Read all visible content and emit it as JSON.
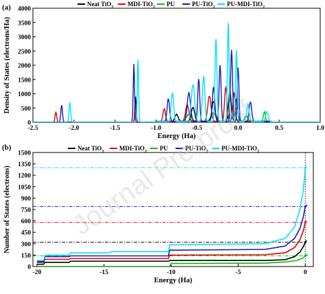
{
  "watermark": "Journal Pre-proof",
  "chart_data": [
    {
      "type": "line",
      "panel_tag": "(a)",
      "xlabel": "Energy (Ha)",
      "ylabel": "Density of States (electrons/Ha)",
      "xlim": [
        -2.5,
        1.0
      ],
      "ylim": [
        0,
        4000
      ],
      "xticks": [
        -2.5,
        -2.0,
        -1.5,
        -1.0,
        -0.5,
        0.0,
        0.5,
        1.0
      ],
      "xtick_labels": [
        "-2.5",
        "-2.0",
        "-1.5",
        "-1.0",
        "-0.5",
        "0.0",
        "0.5",
        "1.0"
      ],
      "yticks": [
        0,
        500,
        1000,
        1500,
        2000,
        2500,
        3000,
        3500,
        4000
      ],
      "ytick_labels": [
        "0",
        "500",
        "1000",
        "1500",
        "2000",
        "2500",
        "3000",
        "3500",
        "4000"
      ],
      "legend_position": "top-right",
      "series": [
        {
          "name": "Neat TiO2",
          "name_main": "Neat TiO",
          "name_sub": "2",
          "color": "#000000",
          "peaks": [
            [
              -1.25,
              900,
              0.008
            ],
            [
              -0.75,
              250,
              0.02
            ],
            [
              -0.55,
              500,
              0.02
            ],
            [
              -0.3,
              700,
              0.02
            ],
            [
              -0.1,
              1100,
              0.015
            ],
            [
              -0.02,
              800,
              0.015
            ]
          ]
        },
        {
          "name": "MDI-TiO2",
          "name_main": "MDI-TiO",
          "name_sub": "2",
          "color": "#e00000",
          "peaks": [
            [
              -2.22,
              350,
              0.01
            ],
            [
              -1.25,
              650,
              0.008
            ],
            [
              -0.9,
              450,
              0.015
            ],
            [
              -0.62,
              600,
              0.02
            ],
            [
              -0.35,
              900,
              0.02
            ],
            [
              -0.15,
              1200,
              0.015
            ],
            [
              -0.05,
              1000,
              0.015
            ]
          ]
        },
        {
          "name": "PU",
          "name_main": "PU",
          "name_sub": "",
          "color": "#00c000",
          "peaks": [
            [
              -0.6,
              250,
              0.03
            ],
            [
              -0.3,
              300,
              0.03
            ],
            [
              -0.05,
              350,
              0.02
            ],
            [
              0.1,
              200,
              0.02
            ],
            [
              0.32,
              350,
              0.012
            ]
          ]
        },
        {
          "name": "PU-TiO2",
          "name_main": "PU-TiO",
          "name_sub": "2",
          "color": "#1a1ab8",
          "peaks": [
            [
              -2.15,
              600,
              0.01
            ],
            [
              -1.27,
              2050,
              0.008
            ],
            [
              -0.85,
              800,
              0.015
            ],
            [
              -0.6,
              1000,
              0.02
            ],
            [
              -0.48,
              1500,
              0.012
            ],
            [
              -0.3,
              1200,
              0.015
            ],
            [
              -0.22,
              2000,
              0.012
            ],
            [
              -0.08,
              2500,
              0.012
            ],
            [
              0.0,
              1900,
              0.01
            ],
            [
              0.15,
              700,
              0.015
            ]
          ]
        },
        {
          "name": "PU-MDI-TiO2",
          "name_main": "PU-MDI-TiO",
          "name_sub": "2",
          "color": "#00e0ff",
          "peaks": [
            [
              -2.05,
              700,
              0.01
            ],
            [
              -1.22,
              2200,
              0.008
            ],
            [
              -0.8,
              1000,
              0.015
            ],
            [
              -0.55,
              1300,
              0.02
            ],
            [
              -0.42,
              1600,
              0.015
            ],
            [
              -0.27,
              2900,
              0.012
            ],
            [
              -0.12,
              3450,
              0.01
            ],
            [
              -0.02,
              2500,
              0.01
            ],
            [
              0.12,
              600,
              0.015
            ],
            [
              0.35,
              350,
              0.015
            ]
          ]
        }
      ]
    },
    {
      "type": "line",
      "panel_tag": "(b)",
      "xlabel": "Energy (Ha)",
      "ylabel": "Number of States (electrons)",
      "xlim": [
        -20.3,
        0.6
      ],
      "ylim": [
        0,
        1500
      ],
      "xticks": [
        -20,
        -15,
        -10,
        -5,
        0
      ],
      "xtick_labels": [
        "-20",
        "-15",
        "-10",
        "-5",
        "0"
      ],
      "yticks": [
        0,
        150,
        300,
        450,
        600,
        750,
        900,
        1050,
        1200,
        1350,
        1500
      ],
      "ytick_labels": [
        "0",
        "150",
        "300",
        "450",
        "600",
        "750",
        "900",
        "1050",
        "1200",
        "1350",
        "1500"
      ],
      "legend_position": "top",
      "fermi_level": 0,
      "series": [
        {
          "name": "Neat TiO2",
          "name_main": "Neat TiO",
          "name_sub": "2",
          "color": "#000000",
          "total": 320,
          "points": [
            [
              -20,
              30
            ],
            [
              -19.5,
              30
            ],
            [
              -19.4,
              55
            ],
            [
              -17.6,
              55
            ],
            [
              -17.5,
              70
            ],
            [
              -10.2,
              70
            ],
            [
              -10.1,
              80
            ],
            [
              -3,
              80
            ],
            [
              -1.5,
              90
            ],
            [
              -0.8,
              130
            ],
            [
              -0.4,
              190
            ],
            [
              -0.15,
              260
            ],
            [
              0,
              320
            ],
            [
              0.1,
              345
            ]
          ]
        },
        {
          "name": "MDI-TiO2",
          "name_main": "MDI-TiO",
          "name_sub": "2",
          "color": "#e00000",
          "total": 580,
          "points": [
            [
              -20,
              55
            ],
            [
              -19.5,
              55
            ],
            [
              -19.4,
              95
            ],
            [
              -17.6,
              95
            ],
            [
              -17.5,
              105
            ],
            [
              -10.2,
              105
            ],
            [
              -10.1,
              150
            ],
            [
              -3,
              155
            ],
            [
              -1.5,
              180
            ],
            [
              -0.8,
              250
            ],
            [
              -0.4,
              350
            ],
            [
              -0.15,
              470
            ],
            [
              0,
              580
            ],
            [
              0.1,
              600
            ]
          ]
        },
        {
          "name": "PU",
          "name_main": "PU",
          "name_sub": "",
          "color": "#00c000",
          "total": 140,
          "points": [
            [
              -20,
              0
            ],
            [
              -10.1,
              0
            ],
            [
              -10,
              40
            ],
            [
              -3,
              45
            ],
            [
              -1.5,
              60
            ],
            [
              -0.6,
              80
            ],
            [
              -0.2,
              110
            ],
            [
              0,
              140
            ],
            [
              0.2,
              160
            ]
          ]
        },
        {
          "name": "PU-TiO2",
          "name_main": "PU-TiO",
          "name_sub": "2",
          "color": "#1a1ab8",
          "total": 790,
          "points": [
            [
              -20,
              65
            ],
            [
              -19.5,
              65
            ],
            [
              -19.4,
              130
            ],
            [
              -17.6,
              130
            ],
            [
              -17.5,
              140
            ],
            [
              -10.2,
              140
            ],
            [
              -10.1,
              215
            ],
            [
              -3,
              225
            ],
            [
              -1.5,
              270
            ],
            [
              -0.8,
              370
            ],
            [
              -0.4,
              500
            ],
            [
              -0.15,
              650
            ],
            [
              0,
              790
            ],
            [
              0.15,
              810
            ]
          ]
        },
        {
          "name": "PU-MDI-TiO2",
          "name_main": "PU-MDI-TiO",
          "name_sub": "2",
          "color": "#00e0ff",
          "total": 1300,
          "points": [
            [
              -20,
              80
            ],
            [
              -19.5,
              80
            ],
            [
              -19.4,
              150
            ],
            [
              -17.6,
              150
            ],
            [
              -17.5,
              180
            ],
            [
              -14.6,
              180
            ],
            [
              -14.5,
              195
            ],
            [
              -10.2,
              195
            ],
            [
              -10.1,
              285
            ],
            [
              -3,
              300
            ],
            [
              -1.5,
              370
            ],
            [
              -0.8,
              520
            ],
            [
              -0.4,
              750
            ],
            [
              -0.15,
              1000
            ],
            [
              0,
              1300
            ],
            [
              0.1,
              1320
            ]
          ]
        }
      ]
    }
  ]
}
